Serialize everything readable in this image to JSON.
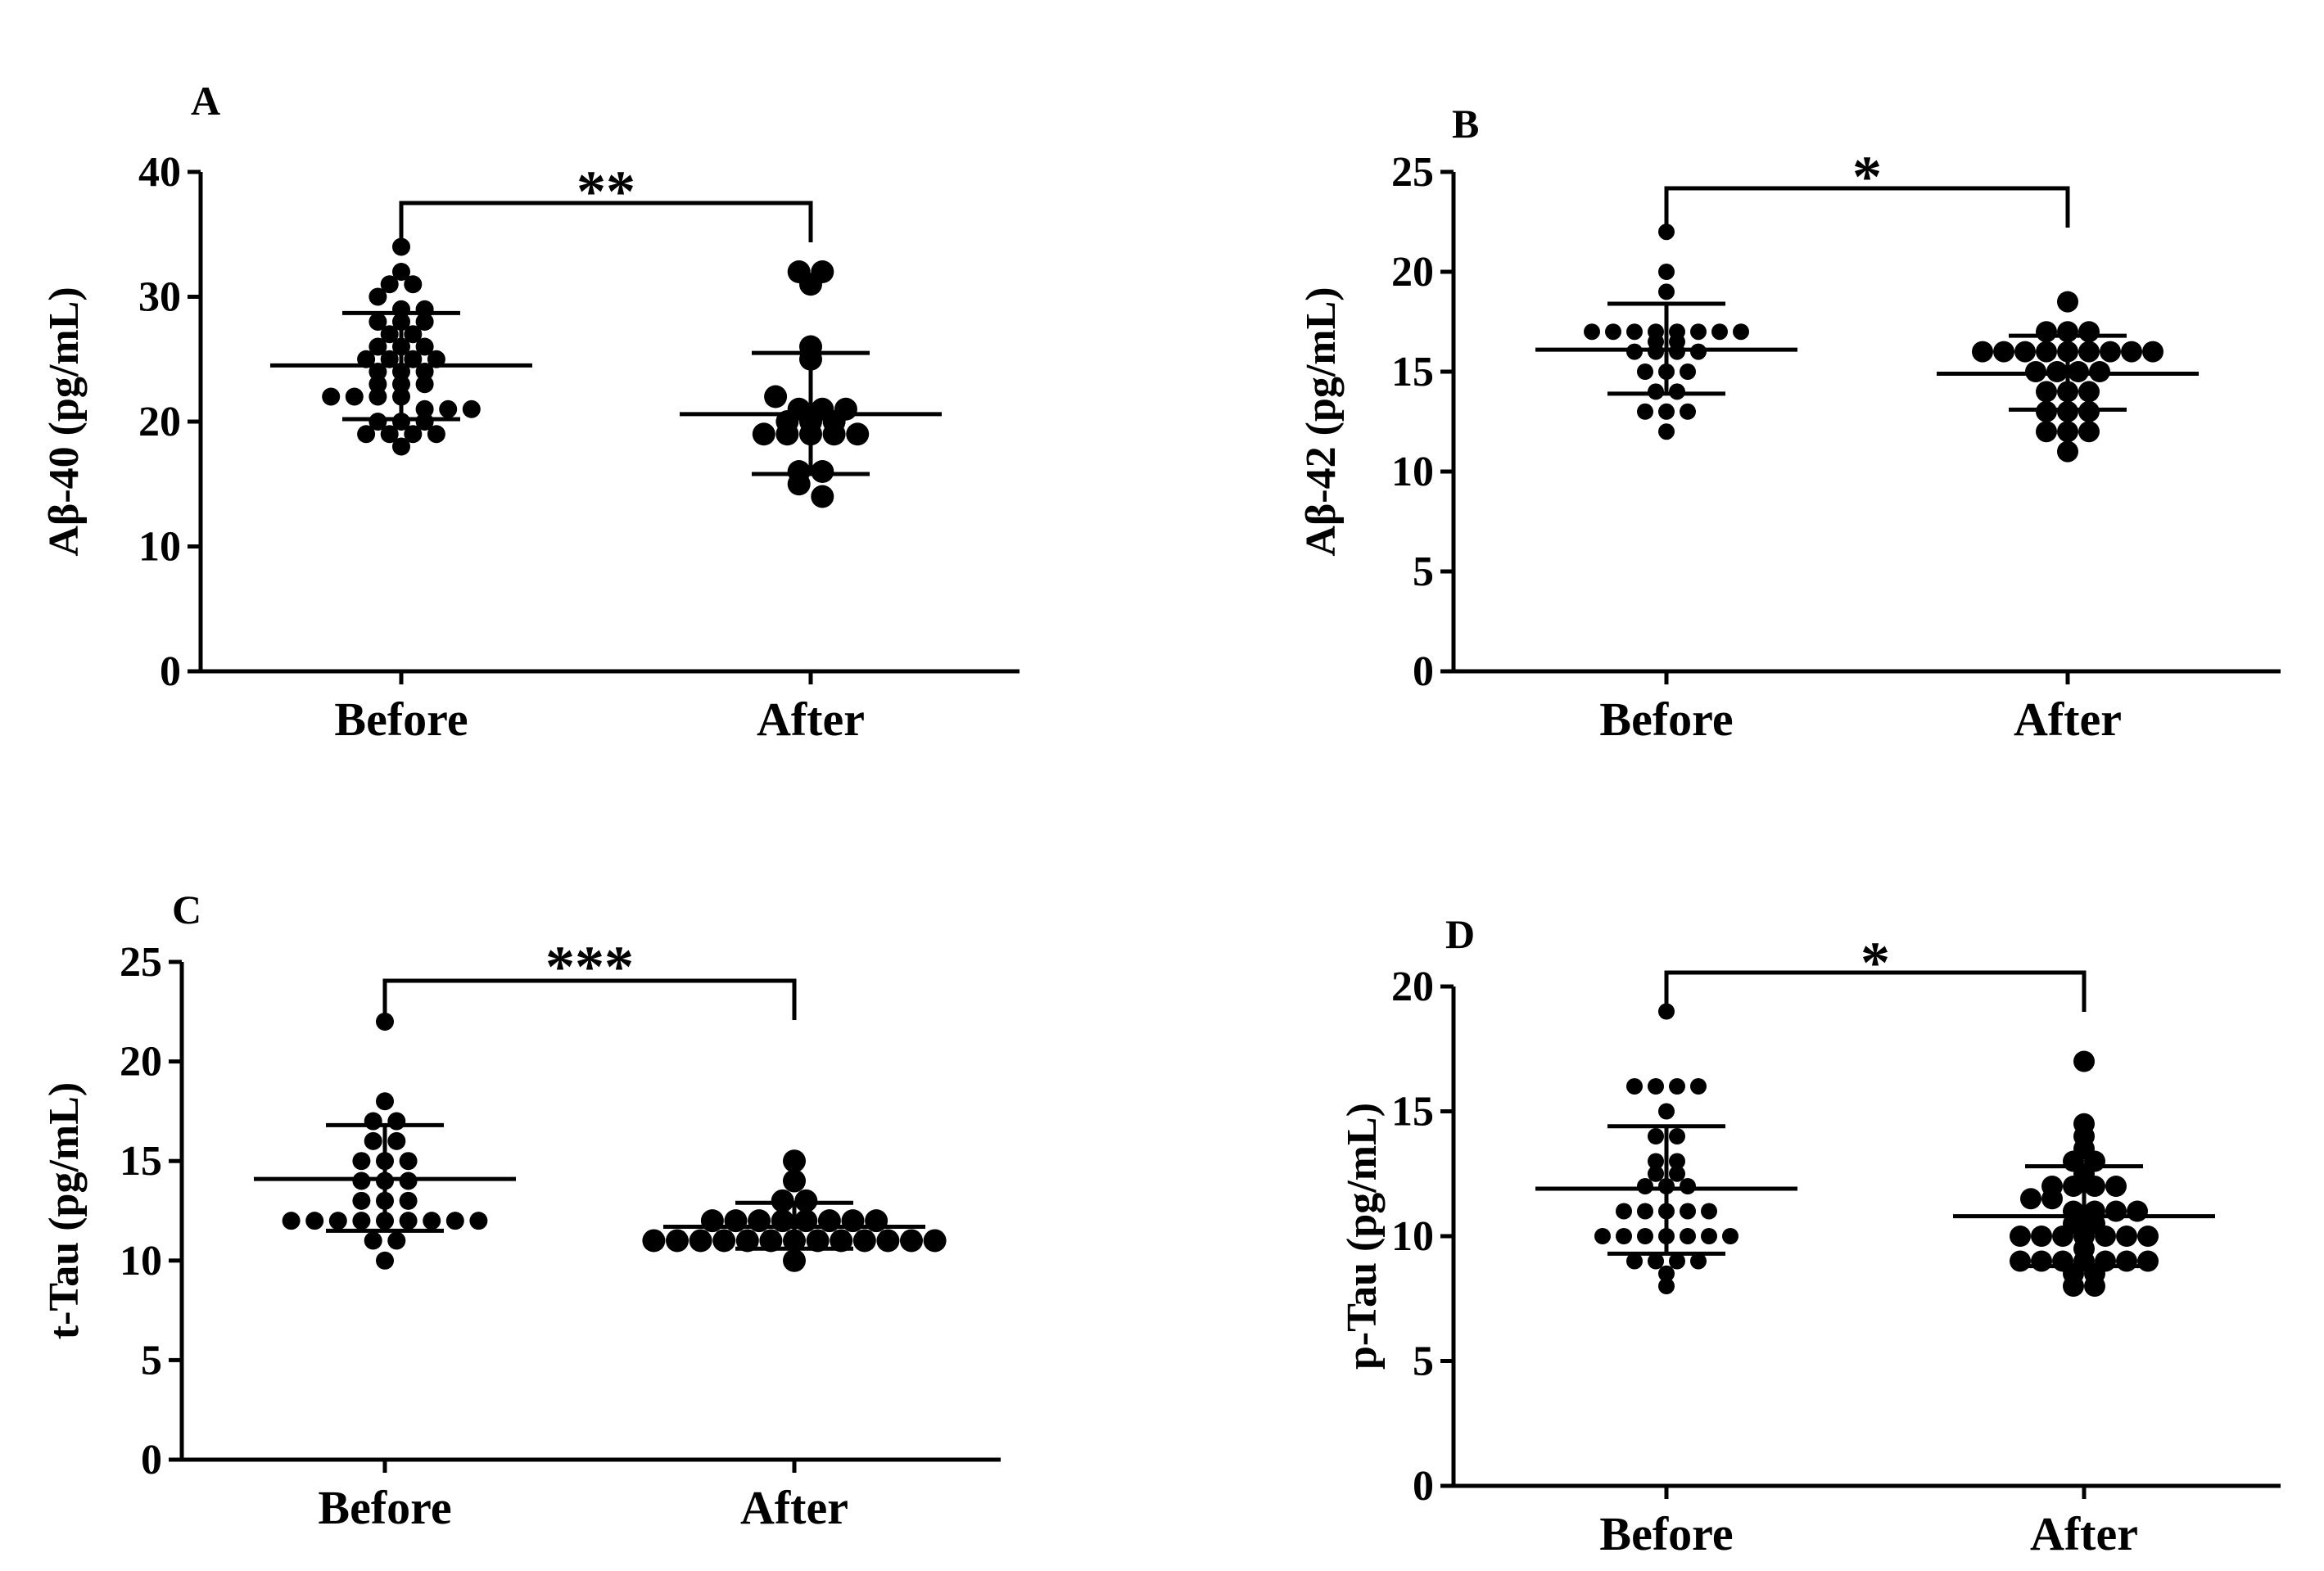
{
  "figure_title": "",
  "chart_data": [
    {
      "type": "scatter",
      "panel": "A",
      "ylabel": "Aβ-40 (pg/mL)",
      "xlabel": "",
      "categories": [
        "Before",
        "After"
      ],
      "ylim": [
        0,
        40
      ],
      "yticks": [
        0,
        10,
        20,
        30,
        40
      ],
      "significance": "**",
      "series": [
        {
          "name": "Before",
          "values": [
            34,
            32,
            31,
            31,
            30,
            29,
            29,
            28,
            28,
            28,
            27,
            27,
            26,
            26,
            26,
            25,
            25,
            25,
            25,
            24,
            24,
            24,
            23,
            23,
            23,
            22,
            22,
            22,
            22,
            21,
            21,
            21,
            20,
            20,
            20,
            19,
            19,
            19,
            19,
            18
          ],
          "mean": 24.5,
          "sd_low": 20.2,
          "sd_high": 28.7
        },
        {
          "name": "After",
          "values": [
            32,
            32,
            31,
            26,
            25,
            22,
            21,
            21,
            21,
            20,
            20,
            20,
            19,
            19,
            19,
            19,
            19,
            16,
            16,
            15,
            14
          ],
          "mean": 20.6,
          "sd_low": 15.8,
          "sd_high": 25.5
        }
      ]
    },
    {
      "type": "scatter",
      "panel": "B",
      "ylabel": "Aβ-42 (pg/mL)",
      "xlabel": "",
      "categories": [
        "Before",
        "After"
      ],
      "ylim": [
        0,
        25
      ],
      "yticks": [
        0,
        5,
        10,
        15,
        20,
        25
      ],
      "significance": "*",
      "series": [
        {
          "name": "Before",
          "values": [
            22,
            20,
            19,
            17,
            17,
            17,
            17,
            17,
            17,
            17,
            17,
            16.5,
            16.5,
            16,
            16,
            16,
            16,
            15,
            15,
            15,
            14,
            14,
            13,
            13,
            13,
            12
          ],
          "mean": 16.1,
          "sd_low": 13.9,
          "sd_high": 18.4
        },
        {
          "name": "After",
          "values": [
            18.5,
            17,
            17,
            17,
            16,
            16,
            16,
            16,
            16,
            16,
            16,
            16,
            16,
            15,
            15,
            15,
            15,
            14,
            14,
            14,
            13,
            13,
            13,
            12,
            12,
            12,
            11
          ],
          "mean": 14.9,
          "sd_low": 13.1,
          "sd_high": 16.8
        }
      ]
    },
    {
      "type": "scatter",
      "panel": "C",
      "ylabel": "t-Tau (pg/mL)",
      "xlabel": "",
      "categories": [
        "Before",
        "After"
      ],
      "ylim": [
        0,
        25
      ],
      "yticks": [
        0,
        5,
        10,
        15,
        20,
        25
      ],
      "significance": "***",
      "series": [
        {
          "name": "Before",
          "values": [
            22,
            18,
            17,
            17,
            16,
            16,
            15,
            15,
            15,
            14,
            14,
            14,
            13,
            13,
            13,
            12,
            12,
            12,
            12,
            12,
            12,
            12,
            12,
            12,
            11,
            11,
            10
          ],
          "mean": 14.1,
          "sd_low": 11.5,
          "sd_high": 16.8
        },
        {
          "name": "After",
          "values": [
            15,
            14,
            13,
            13,
            12,
            12,
            12,
            12,
            12,
            12,
            12,
            12,
            11,
            11,
            11,
            11,
            11,
            11,
            11,
            11,
            11,
            11,
            11,
            11,
            11,
            10
          ],
          "mean": 11.7,
          "sd_low": 10.6,
          "sd_high": 12.9
        }
      ]
    },
    {
      "type": "scatter",
      "panel": "D",
      "ylabel": "p-Tau (pg/mL)",
      "xlabel": "",
      "categories": [
        "Before",
        "After"
      ],
      "ylim": [
        0,
        20
      ],
      "yticks": [
        0,
        5,
        10,
        15,
        20
      ],
      "significance": "*",
      "series": [
        {
          "name": "Before",
          "values": [
            19,
            16,
            16,
            16,
            16,
            15,
            14,
            14,
            13,
            13,
            12.5,
            12.5,
            12,
            12,
            12,
            11,
            11,
            11,
            11,
            11,
            10,
            10,
            10,
            10,
            10,
            10,
            10,
            9,
            9,
            9,
            9,
            8.5,
            8
          ],
          "mean": 11.9,
          "sd_low": 9.3,
          "sd_high": 14.4
        },
        {
          "name": "After",
          "values": [
            17,
            14.5,
            14,
            13.5,
            13,
            13,
            12.5,
            12,
            12,
            12,
            12,
            11.5,
            11.5,
            11,
            11,
            11,
            11,
            10.5,
            10.5,
            10,
            10,
            10,
            10,
            10,
            10,
            10,
            9.5,
            9,
            9,
            9,
            9,
            9,
            9,
            9,
            8.5,
            8.5,
            8,
            8
          ],
          "mean": 10.8,
          "sd_low": 8.8,
          "sd_high": 12.8
        }
      ]
    }
  ]
}
